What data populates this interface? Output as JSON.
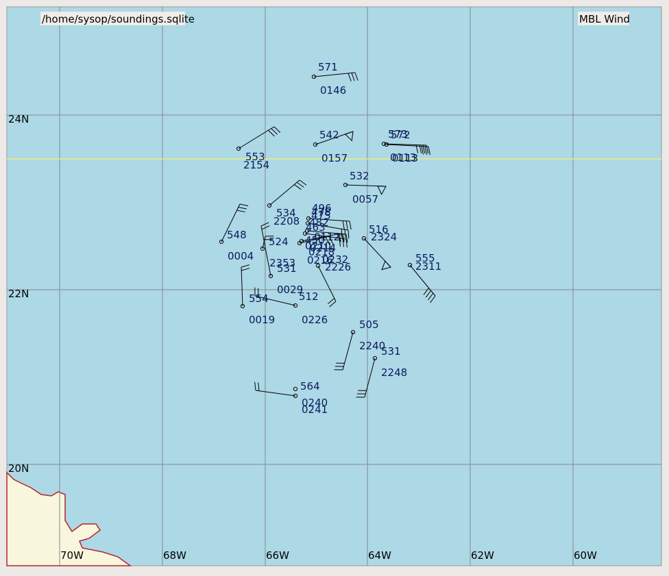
{
  "header": {
    "source": "/home/sysop/soundings.sqlite",
    "product": "MBL Wind"
  },
  "grid": {
    "lat_labels": [
      "24N",
      "22N",
      "20N"
    ],
    "lon_labels": [
      "70W",
      "68W",
      "66W",
      "64W",
      "62W",
      "60W"
    ]
  },
  "stations": [
    {
      "top": "571",
      "bottom": "0146"
    },
    {
      "top": "542",
      "bottom": "0157"
    },
    {
      "top": "573",
      "bottom": "0113"
    },
    {
      "top": "572",
      "bottom": "0113"
    },
    {
      "top": "553",
      "bottom": "2154"
    },
    {
      "top": "532",
      "bottom": "0057"
    },
    {
      "top": "534",
      "bottom": "2208"
    },
    {
      "top": "548",
      "bottom": "0004"
    },
    {
      "top": "524",
      "bottom": "2353"
    },
    {
      "top": "531",
      "bottom": "0029"
    },
    {
      "top": "516",
      "bottom": "2324"
    },
    {
      "top": "555",
      "bottom": "2311"
    },
    {
      "top": "0232",
      "bottom": "2226"
    },
    {
      "top": "554",
      "bottom": "0019"
    },
    {
      "top": "512",
      "bottom": "0226"
    },
    {
      "top": "505",
      "bottom": "2240"
    },
    {
      "top": "531",
      "bottom": "2248"
    },
    {
      "top": "564",
      "bottom": "0240"
    },
    {
      "bottom": "0241"
    },
    {
      "top": "496",
      "bottom": "0214"
    },
    {
      "top": "478",
      "bottom": "0218"
    },
    {
      "top": "475",
      "bottom": "0216"
    },
    {
      "top": "482",
      "bottom": "0112"
    },
    {
      "top": "463",
      "bottom": "0210"
    },
    {
      "top": "450"
    }
  ]
}
